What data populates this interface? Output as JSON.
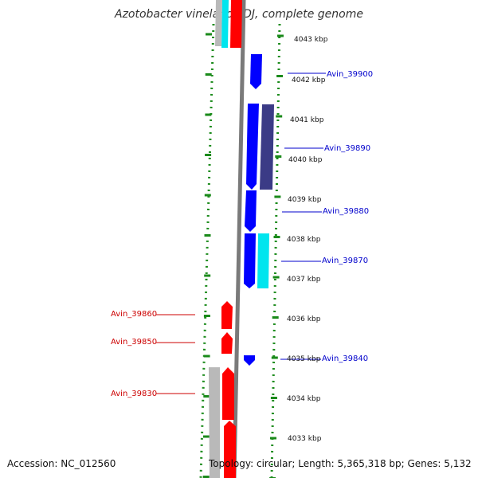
{
  "title": "Azotobacter vinelandii DJ, complete genome",
  "accession": "Accession: NC_012560",
  "topology": "Topology: circular; Length: 5,365,318 bp; Genes: 5,132",
  "colors": {
    "forward_gene": "#ff0000",
    "reverse_gene": "#0000ff",
    "cyan_feature": "#00e5ee",
    "dark_feature": "#3b3b86",
    "gray_feature": "#b9b9b9",
    "tick": "#1a8a1a",
    "backbone": "#7a7a7a",
    "label_forward": "#cc0000",
    "label_reverse": "#0000cc"
  },
  "scale_labels": [
    "4043 kbp",
    "4042 kbp",
    "4041 kbp",
    "4040 kbp",
    "4039 kbp",
    "4038 kbp",
    "4037 kbp",
    "4036 kbp",
    "4035 kbp",
    "4034 kbp",
    "4033 kbp"
  ],
  "gene_labels": [
    {
      "text": "Avin_39900",
      "strand": "reverse"
    },
    {
      "text": "Avin_39890",
      "strand": "reverse"
    },
    {
      "text": "Avin_39880",
      "strand": "reverse"
    },
    {
      "text": "Avin_39870",
      "strand": "reverse"
    },
    {
      "text": "Avin_39860",
      "strand": "forward"
    },
    {
      "text": "Avin_39850",
      "strand": "forward"
    },
    {
      "text": "Avin_39840",
      "strand": "reverse"
    },
    {
      "text": "Avin_39830",
      "strand": "forward"
    }
  ]
}
